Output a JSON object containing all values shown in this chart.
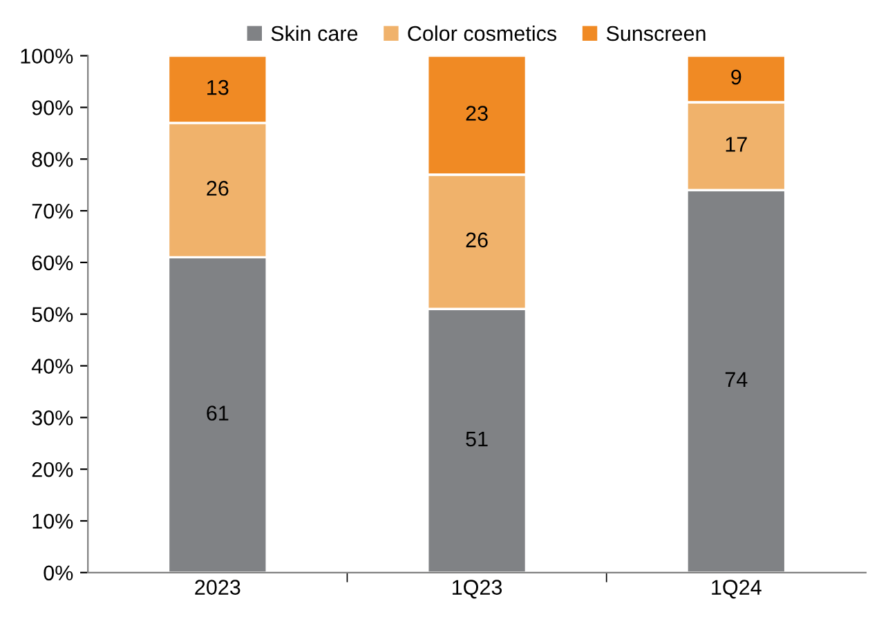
{
  "chart_data": {
    "type": "bar",
    "stacked": true,
    "categories": [
      "2023",
      "1Q23",
      "1Q24"
    ],
    "series": [
      {
        "name": "Skin care",
        "color": "#808285",
        "values": [
          61,
          51,
          74
        ]
      },
      {
        "name": "Color cosmetics",
        "color": "#f0b26b",
        "values": [
          26,
          26,
          17
        ]
      },
      {
        "name": "Sunscreen",
        "color": "#f08a24",
        "values": [
          13,
          23,
          9
        ]
      }
    ],
    "ylim": [
      0,
      100
    ],
    "yticks": [
      {
        "value": 0,
        "label": "0%"
      },
      {
        "value": 10,
        "label": "10%"
      },
      {
        "value": 20,
        "label": "20%"
      },
      {
        "value": 30,
        "label": "30%"
      },
      {
        "value": 40,
        "label": "40%"
      },
      {
        "value": 50,
        "label": "50%"
      },
      {
        "value": 60,
        "label": "60%"
      },
      {
        "value": 70,
        "label": "70%"
      },
      {
        "value": 80,
        "label": "80%"
      },
      {
        "value": 90,
        "label": "90%"
      },
      {
        "value": 100,
        "label": "100%"
      }
    ],
    "data_labels": true,
    "legend": "top",
    "grid": false
  }
}
